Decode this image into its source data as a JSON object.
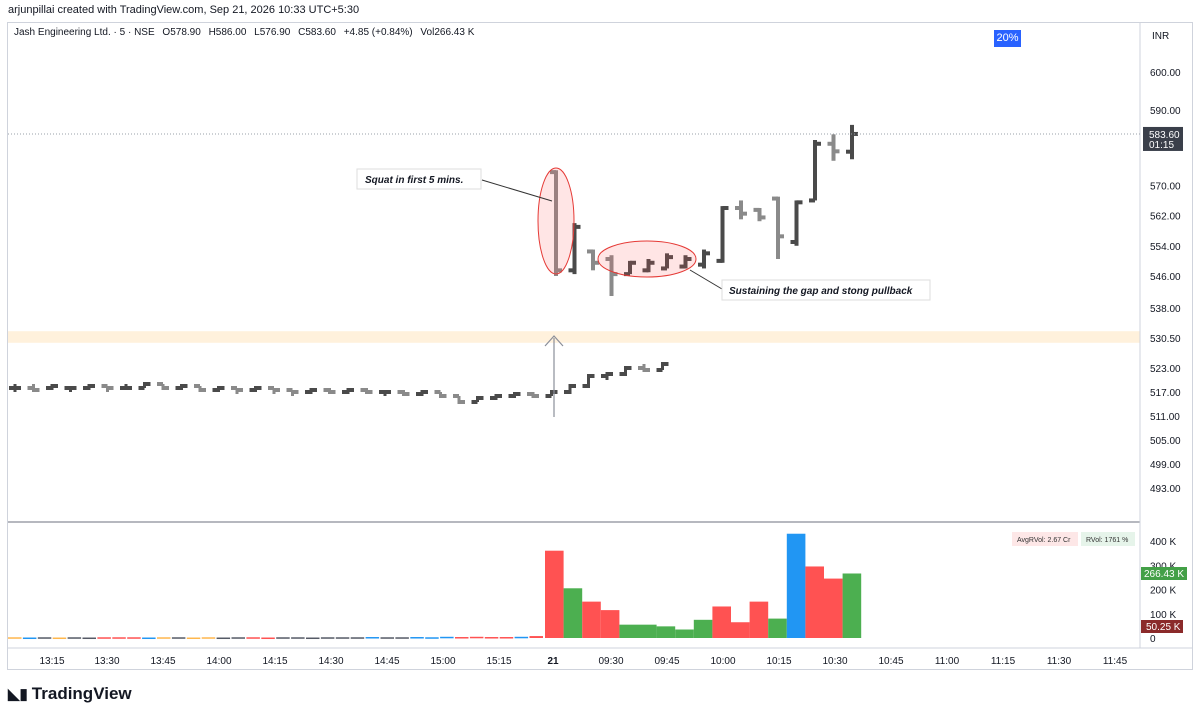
{
  "header": {
    "credit": "arjunpillai created with TradingView.com, Sep 21, 2026 10:33 UTC+5:30"
  },
  "legend": {
    "symbol": "Jash Engineering Ltd. · 5 · NSE",
    "open": "O578.90",
    "high": "H586.00",
    "low": "L576.90",
    "close": "C583.60",
    "change": "+4.85 (+0.84%)",
    "volume": "Vol266.43 K"
  },
  "badge_pct": "20%",
  "currency": "INR",
  "last_price": {
    "value": "583.60",
    "countdown": "01:15"
  },
  "volume_info": {
    "avg_rvol": "AvgRVol: 2.67 Cr",
    "rvol": "RVol: 1761 %",
    "last_vol": "266.43 K",
    "avg_vol": "50.25 K"
  },
  "annotations": {
    "squat": "Squat in first 5 mins.",
    "sustain": "Sustaining the gap and stong pullback"
  },
  "brand": "TradingView",
  "colors": {
    "up_bar": "#4a4a4a",
    "down_bar": "#8a8a8a",
    "vol_up": "#4caf50",
    "vol_down": "#ff5252",
    "vol_blue": "#2196f3",
    "zone": "#fff1dc",
    "accent": "#2962ff"
  },
  "chart_data": {
    "type": "ohlc",
    "price_axis": {
      "ticks": [
        600.0,
        590.0,
        583.6,
        570.0,
        562.0,
        554.0,
        546.0,
        538.0,
        530.5,
        523.0,
        517.0,
        511.0,
        505.0,
        499.0,
        493.0
      ]
    },
    "tick_labels": [
      "600.00",
      "590.00",
      "570.00",
      "562.00",
      "554.00",
      "546.00",
      "538.00",
      "530.50",
      "523.00",
      "517.00",
      "511.00",
      "505.00",
      "499.00",
      "493.00"
    ],
    "x_labels": [
      "13:15",
      "13:30",
      "13:45",
      "14:00",
      "14:15",
      "14:30",
      "14:45",
      "15:00",
      "15:15",
      "21",
      "09:30",
      "09:45",
      "10:00",
      "10:15",
      "10:30",
      "10:45",
      "11:00",
      "11:15",
      "11:30",
      "11:45"
    ],
    "vol_axis": [
      {
        "label": "400 K",
        "value": 400
      },
      {
        "label": "300 K",
        "value": 300
      },
      {
        "label": "200 K",
        "value": 200
      },
      {
        "label": "100 K",
        "value": 100
      },
      {
        "label": "0",
        "value": 0
      }
    ],
    "zone": {
      "from": 529.3,
      "to": 532.2
    },
    "bars": [
      {
        "o": 518.0,
        "h": 519.0,
        "l": 517.0,
        "c": 518.0,
        "v": 3
      },
      {
        "o": 518.0,
        "h": 519.0,
        "l": 517.0,
        "c": 517.5,
        "v": 2
      },
      {
        "o": 518.0,
        "h": 519.0,
        "l": 517.5,
        "c": 518.5,
        "v": 3
      },
      {
        "o": 518.0,
        "h": 518.5,
        "l": 517.5,
        "c": 518.0,
        "v": 2
      },
      {
        "o": 518.0,
        "h": 519.0,
        "l": 517.5,
        "c": 518.5,
        "v": 3
      },
      {
        "o": 518.5,
        "h": 518.5,
        "l": 517.5,
        "c": 518.0,
        "v": 2
      },
      {
        "o": 518.0,
        "h": 519.0,
        "l": 517.5,
        "c": 518.0,
        "v": 3
      },
      {
        "o": 518.0,
        "h": 519.5,
        "l": 518.0,
        "c": 519.0,
        "v": 3
      },
      {
        "o": 519.0,
        "h": 519.0,
        "l": 518.0,
        "c": 518.0,
        "v": 3
      },
      {
        "o": 518.0,
        "h": 519.0,
        "l": 517.5,
        "c": 518.5,
        "v": 2
      },
      {
        "o": 518.5,
        "h": 518.5,
        "l": 517.5,
        "c": 517.5,
        "v": 3
      },
      {
        "o": 517.5,
        "h": 518.5,
        "l": 517.5,
        "c": 518.0,
        "v": 3
      },
      {
        "o": 518.0,
        "h": 518.0,
        "l": 517.0,
        "c": 517.5,
        "v": 2
      },
      {
        "o": 517.5,
        "h": 518.5,
        "l": 517.0,
        "c": 518.0,
        "v": 3
      },
      {
        "o": 518.0,
        "h": 518.0,
        "l": 517.0,
        "c": 517.5,
        "v": 2
      },
      {
        "o": 517.5,
        "h": 517.5,
        "l": 516.5,
        "c": 517.0,
        "v": 3
      },
      {
        "o": 517.0,
        "h": 518.0,
        "l": 517.0,
        "c": 517.5,
        "v": 3
      },
      {
        "o": 517.5,
        "h": 518.0,
        "l": 516.5,
        "c": 517.0,
        "v": 2
      },
      {
        "o": 517.0,
        "h": 518.0,
        "l": 516.5,
        "c": 517.5,
        "v": 3
      },
      {
        "o": 517.5,
        "h": 518.0,
        "l": 516.5,
        "c": 517.0,
        "v": 3
      },
      {
        "o": 517.0,
        "h": 517.5,
        "l": 516.5,
        "c": 517.0,
        "v": 2
      },
      {
        "o": 517.0,
        "h": 517.5,
        "l": 516.0,
        "c": 516.5,
        "v": 3
      },
      {
        "o": 516.5,
        "h": 517.5,
        "l": 516.5,
        "c": 517.0,
        "v": 3
      },
      {
        "o": 517.0,
        "h": 517.0,
        "l": 516.0,
        "c": 516.0,
        "v": 3
      },
      {
        "o": 516.0,
        "h": 516.0,
        "l": 514.0,
        "c": 514.5,
        "v": 4
      },
      {
        "o": 514.5,
        "h": 516.0,
        "l": 514.5,
        "c": 515.5,
        "v": 3
      },
      {
        "o": 515.5,
        "h": 516.5,
        "l": 515.0,
        "c": 516.0,
        "v": 3
      },
      {
        "o": 516.0,
        "h": 517.0,
        "l": 516.0,
        "c": 516.5,
        "v": 4
      },
      {
        "o": 516.5,
        "h": 517.0,
        "l": 516.0,
        "c": 516.0,
        "v": 3
      },
      {
        "o": 516.0,
        "h": 517.5,
        "l": 516.0,
        "c": 517.0,
        "v": 5
      },
      {
        "o": 517.0,
        "h": 519.0,
        "l": 516.5,
        "c": 518.5,
        "v": 4
      },
      {
        "o": 518.5,
        "h": 521.5,
        "l": 518.0,
        "c": 521.0,
        "v": 5
      },
      {
        "o": 521.0,
        "h": 522.0,
        "l": 520.0,
        "c": 521.5,
        "v": 4
      },
      {
        "o": 521.5,
        "h": 523.5,
        "l": 521.0,
        "c": 523.0,
        "v": 4
      },
      {
        "o": 523.0,
        "h": 524.0,
        "l": 522.0,
        "c": 522.5,
        "v": 5
      },
      {
        "o": 522.5,
        "h": 524.5,
        "l": 522.5,
        "c": 524.0,
        "v": 8
      },
      {
        "o": 573.5,
        "h": 574.0,
        "l": 546.0,
        "c": 547.5,
        "v": 360
      },
      {
        "o": 547.5,
        "h": 560.0,
        "l": 546.5,
        "c": 559.0,
        "v": 205
      },
      {
        "o": 552.5,
        "h": 553.0,
        "l": 547.5,
        "c": 549.5,
        "v": 150
      },
      {
        "o": 550.5,
        "h": 551.5,
        "l": 541.0,
        "c": 546.5,
        "v": 115
      },
      {
        "o": 546.5,
        "h": 550.0,
        "l": 546.5,
        "c": 549.5,
        "v": 55
      },
      {
        "o": 547.5,
        "h": 550.5,
        "l": 547.0,
        "c": 549.5,
        "v": 55
      },
      {
        "o": 548.0,
        "h": 552.0,
        "l": 548.0,
        "c": 551.0,
        "v": 48
      },
      {
        "o": 548.5,
        "h": 551.5,
        "l": 548.0,
        "c": 550.5,
        "v": 35
      },
      {
        "o": 549.0,
        "h": 553.0,
        "l": 548.0,
        "c": 552.0,
        "v": 75
      },
      {
        "o": 550.0,
        "h": 564.5,
        "l": 549.5,
        "c": 564.0,
        "v": 130
      },
      {
        "o": 564.0,
        "h": 566.0,
        "l": 561.0,
        "c": 562.5,
        "v": 65
      },
      {
        "o": 563.5,
        "h": 564.0,
        "l": 560.5,
        "c": 561.5,
        "v": 150
      },
      {
        "o": 566.5,
        "h": 567.0,
        "l": 550.5,
        "c": 556.5,
        "v": 80
      },
      {
        "o": 555.0,
        "h": 566.0,
        "l": 554.0,
        "c": 565.5,
        "v": 430
      },
      {
        "o": 566.0,
        "h": 582.0,
        "l": 566.0,
        "c": 581.0,
        "v": 295
      },
      {
        "o": 581.0,
        "h": 583.5,
        "l": 576.5,
        "c": 579.0,
        "v": 245
      },
      {
        "o": 578.9,
        "h": 586.0,
        "l": 576.9,
        "c": 583.6,
        "v": 266
      }
    ],
    "vol_colors": [
      "o",
      "b",
      "k",
      "o",
      "k",
      "k",
      "r",
      "r",
      "r",
      "b",
      "o",
      "k",
      "o",
      "o",
      "k",
      "k",
      "r",
      "r",
      "k",
      "k",
      "k",
      "k",
      "k",
      "k",
      "b",
      "k",
      "k",
      "b",
      "b",
      "b",
      "r",
      "r",
      "r",
      "r",
      "b",
      "r",
      "r",
      "g",
      "r",
      "r",
      "g",
      "g",
      "g",
      "g",
      "g",
      "r",
      "r",
      "r",
      "g",
      "b",
      "r",
      "r",
      "g"
    ]
  }
}
